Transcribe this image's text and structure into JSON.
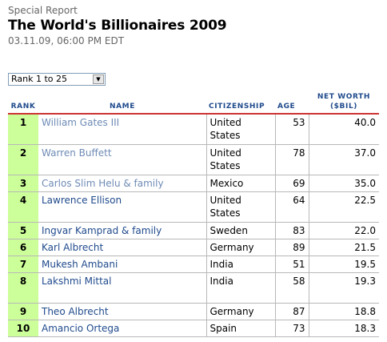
{
  "header": {
    "kicker": "Special Report",
    "title": "The World's Billionaires 2009",
    "timestamp": "03.11.09, 06:00 PM EDT"
  },
  "rank_select": {
    "value": "Rank 1 to 25"
  },
  "table": {
    "headers": {
      "rank": "RANK",
      "name": "NAME",
      "citizenship": "CITIZENSHIP",
      "age": "AGE",
      "net_worth_line1": "NET WORTH",
      "net_worth_line2": "($BIL)"
    },
    "rows": [
      {
        "rank": "1",
        "name": "William Gates III",
        "citizenship": "United States",
        "age": "53",
        "net_worth": "40.0"
      },
      {
        "rank": "2",
        "name": "Warren Buffett",
        "citizenship": "United States",
        "age": "78",
        "net_worth": "37.0"
      },
      {
        "rank": "3",
        "name": "Carlos Slim Helu & family",
        "citizenship": "Mexico",
        "age": "69",
        "net_worth": "35.0"
      },
      {
        "rank": "4",
        "name": "Lawrence Ellison",
        "citizenship": "United States",
        "age": "64",
        "net_worth": "22.5"
      },
      {
        "rank": "5",
        "name": "Ingvar Kamprad & family",
        "citizenship": "Sweden",
        "age": "83",
        "net_worth": "22.0"
      },
      {
        "rank": "6",
        "name": "Karl Albrecht",
        "citizenship": "Germany",
        "age": "89",
        "net_worth": "21.5"
      },
      {
        "rank": "7",
        "name": "Mukesh Ambani",
        "citizenship": "India",
        "age": "51",
        "net_worth": "19.5"
      },
      {
        "rank": "8",
        "name": "Lakshmi Mittal",
        "citizenship": "India",
        "age": "58",
        "net_worth": "19.3"
      },
      {
        "rank": "9",
        "name": "Theo Albrecht",
        "citizenship": "Germany",
        "age": "87",
        "net_worth": "18.8"
      },
      {
        "rank": "10",
        "name": "Amancio Ortega",
        "citizenship": "Spain",
        "age": "73",
        "net_worth": "18.3"
      }
    ]
  },
  "colors": {
    "rank_cell_bg": "#ccff99",
    "header_text": "#1f4a8c",
    "header_rule": "#cc3333",
    "visited_link": "#6e8bb5"
  }
}
